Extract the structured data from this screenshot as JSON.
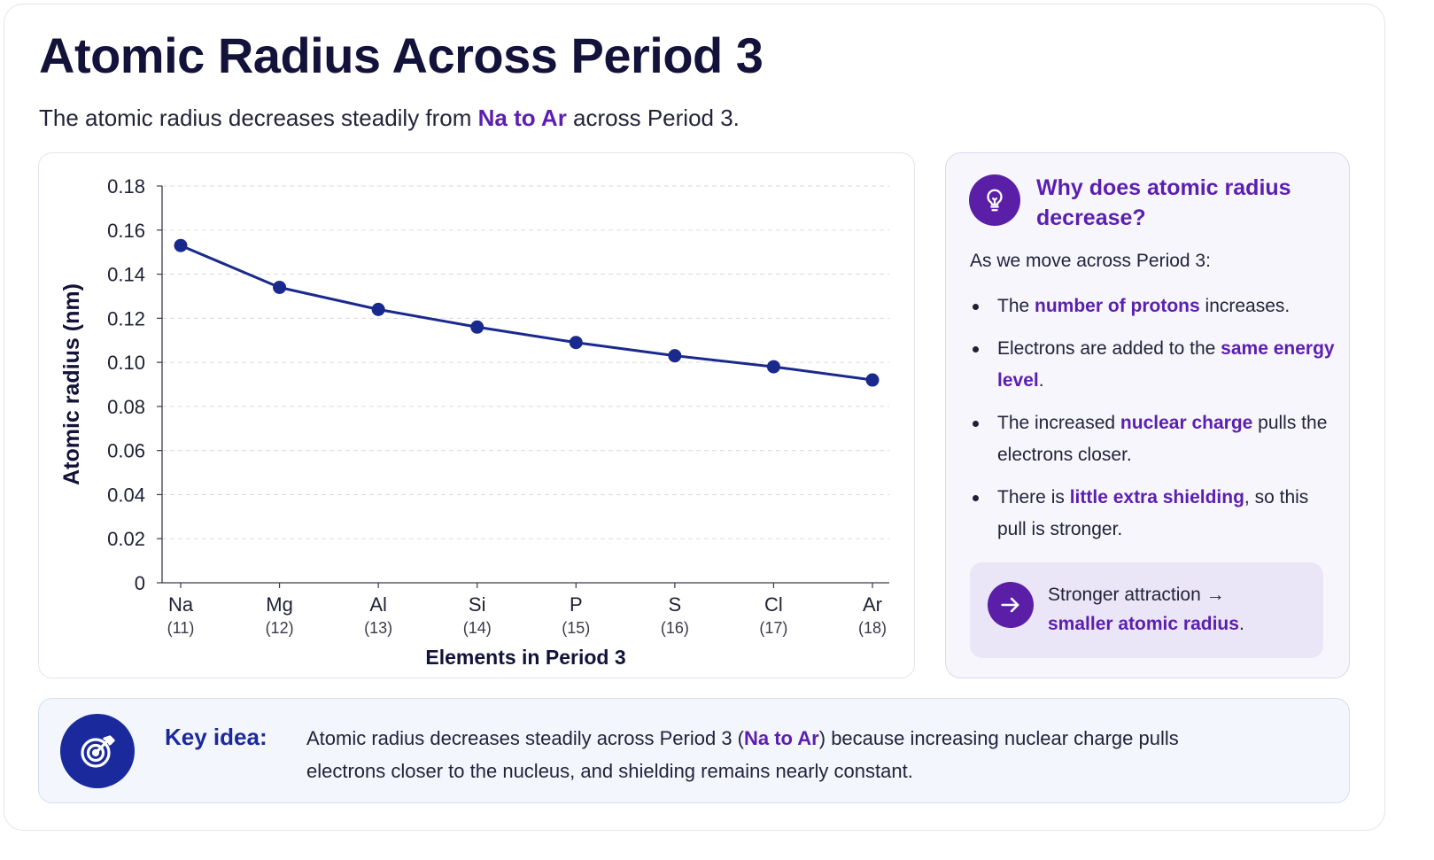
{
  "header": {
    "title": "Atomic Radius Across Period 3",
    "subtitle_before": "The atomic radius decreases steadily from ",
    "subtitle_highlight": "Na to Ar",
    "subtitle_after": " across Period 3."
  },
  "chart_data": {
    "type": "line",
    "xlabel": "Elements in Period 3",
    "ylabel": "Atomic radius (nm)",
    "categories": [
      "Na",
      "Mg",
      "Al",
      "Si",
      "P",
      "S",
      "Cl",
      "Ar"
    ],
    "category_sublabels": [
      "(11)",
      "(12)",
      "(13)",
      "(14)",
      "(15)",
      "(16)",
      "(17)",
      "(18)"
    ],
    "series": [
      {
        "values": [
          0.153,
          0.134,
          0.124,
          0.116,
          0.109,
          0.103,
          0.098,
          0.092
        ]
      }
    ],
    "ylim": [
      0,
      0.18
    ],
    "yticks": [
      "0",
      "0.02",
      "0.04",
      "0.06",
      "0.08",
      "0.10",
      "0.12",
      "0.14",
      "0.16",
      "0.18"
    ],
    "grid": true,
    "line_color": "#1a2a8c"
  },
  "side": {
    "icon": "lightbulb-icon",
    "title": "Why does atomic radius decrease?",
    "intro": "As we move across Period 3:",
    "bullets": [
      {
        "before": "The ",
        "highlight": "number of protons",
        "after": " increases."
      },
      {
        "before": "Electrons are added to the ",
        "highlight": "same energy level",
        "after": "."
      },
      {
        "before": "The increased ",
        "highlight": "nuclear charge",
        "after": " pulls the electrons closer."
      },
      {
        "before": "There is ",
        "highlight": "little extra shielding",
        "after": ", so this pull is stronger."
      }
    ],
    "callout_icon": "arrow-right-icon",
    "callout_line1": "Stronger attraction →",
    "callout_highlight": "smaller atomic radius",
    "callout_after": "."
  },
  "key_idea": {
    "icon": "target-icon",
    "label": "Key idea:",
    "text_before": "Atomic radius decreases steadily across Period 3 (",
    "text_highlight": "Na to Ar",
    "text_after": ") because increasing nuclear charge pulls electrons closer to the nucleus, and shielding remains nearly constant."
  },
  "colors": {
    "accent_purple": "#5b1fb0",
    "navy": "#1a2a8c",
    "title": "#12123a"
  }
}
